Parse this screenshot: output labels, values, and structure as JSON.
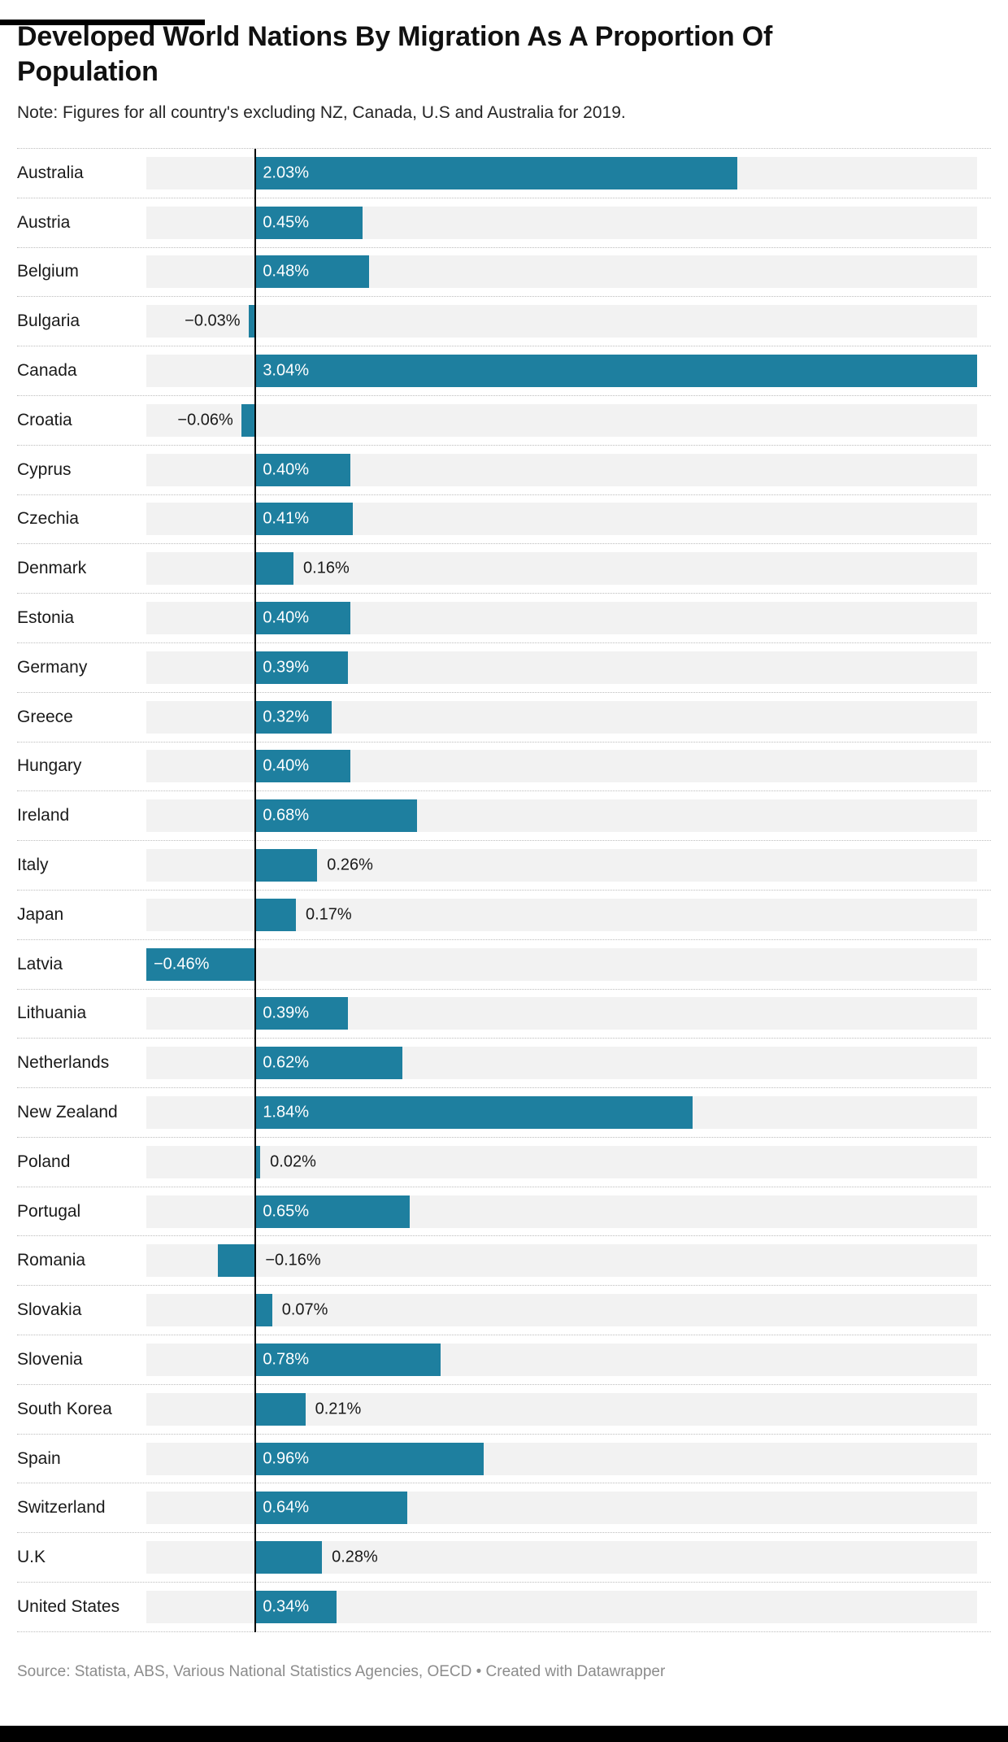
{
  "title": "Developed World Nations By Migration As A Proportion Of Population",
  "note": "Note: Figures for all country's excluding NZ, Canada, U.S and Australia for 2019.",
  "footer": "Source: Statista, ABS, Various National Statistics Agencies, OECD • Created with Datawrapper",
  "colors": {
    "bar": "#1e7f9f",
    "track": "#f2f2f2",
    "axis": "#000000",
    "label_inside": "#ffffff",
    "label_outside": "#1a1a1a"
  },
  "chart_data": {
    "type": "bar",
    "orientation": "horizontal",
    "title": "Developed World Nations By Migration As A Proportion Of Population",
    "xlabel": "",
    "ylabel": "",
    "value_suffix": "%",
    "axis_min": -0.46,
    "axis_max": 3.04,
    "grid": false,
    "legend": false,
    "rows": [
      {
        "country": "Australia",
        "value": 2.03,
        "display": "2.03%",
        "label_pos": "in"
      },
      {
        "country": "Austria",
        "value": 0.45,
        "display": "0.45%",
        "label_pos": "in"
      },
      {
        "country": "Belgium",
        "value": 0.48,
        "display": "0.48%",
        "label_pos": "in"
      },
      {
        "country": "Bulgaria",
        "value": -0.03,
        "display": "−0.03%",
        "label_pos": "left"
      },
      {
        "country": "Canada",
        "value": 3.04,
        "display": "3.04%",
        "label_pos": "in"
      },
      {
        "country": "Croatia",
        "value": -0.06,
        "display": "−0.06%",
        "label_pos": "left"
      },
      {
        "country": "Cyprus",
        "value": 0.4,
        "display": "0.40%",
        "label_pos": "in"
      },
      {
        "country": "Czechia",
        "value": 0.41,
        "display": "0.41%",
        "label_pos": "in"
      },
      {
        "country": "Denmark",
        "value": 0.16,
        "display": "0.16%",
        "label_pos": "right"
      },
      {
        "country": "Estonia",
        "value": 0.4,
        "display": "0.40%",
        "label_pos": "in"
      },
      {
        "country": "Germany",
        "value": 0.39,
        "display": "0.39%",
        "label_pos": "in"
      },
      {
        "country": "Greece",
        "value": 0.32,
        "display": "0.32%",
        "label_pos": "in"
      },
      {
        "country": "Hungary",
        "value": 0.4,
        "display": "0.40%",
        "label_pos": "in"
      },
      {
        "country": "Ireland",
        "value": 0.68,
        "display": "0.68%",
        "label_pos": "in"
      },
      {
        "country": "Italy",
        "value": 0.26,
        "display": "0.26%",
        "label_pos": "right"
      },
      {
        "country": "Japan",
        "value": 0.17,
        "display": "0.17%",
        "label_pos": "right"
      },
      {
        "country": "Latvia",
        "value": -0.46,
        "display": "−0.46%",
        "label_pos": "in"
      },
      {
        "country": "Lithuania",
        "value": 0.39,
        "display": "0.39%",
        "label_pos": "in"
      },
      {
        "country": "Netherlands",
        "value": 0.62,
        "display": "0.62%",
        "label_pos": "in"
      },
      {
        "country": "New Zealand",
        "value": 1.84,
        "display": "1.84%",
        "label_pos": "in"
      },
      {
        "country": "Poland",
        "value": 0.02,
        "display": "0.02%",
        "label_pos": "right"
      },
      {
        "country": "Portugal",
        "value": 0.65,
        "display": "0.65%",
        "label_pos": "in"
      },
      {
        "country": "Romania",
        "value": -0.16,
        "display": "−0.16%",
        "label_pos": "right"
      },
      {
        "country": "Slovakia",
        "value": 0.07,
        "display": "0.07%",
        "label_pos": "right"
      },
      {
        "country": "Slovenia",
        "value": 0.78,
        "display": "0.78%",
        "label_pos": "in"
      },
      {
        "country": "South Korea",
        "value": 0.21,
        "display": "0.21%",
        "label_pos": "right"
      },
      {
        "country": "Spain",
        "value": 0.96,
        "display": "0.96%",
        "label_pos": "in"
      },
      {
        "country": "Switzerland",
        "value": 0.64,
        "display": "0.64%",
        "label_pos": "in"
      },
      {
        "country": "U.K",
        "value": 0.28,
        "display": "0.28%",
        "label_pos": "right"
      },
      {
        "country": "United States",
        "value": 0.34,
        "display": "0.34%",
        "label_pos": "in"
      }
    ]
  }
}
